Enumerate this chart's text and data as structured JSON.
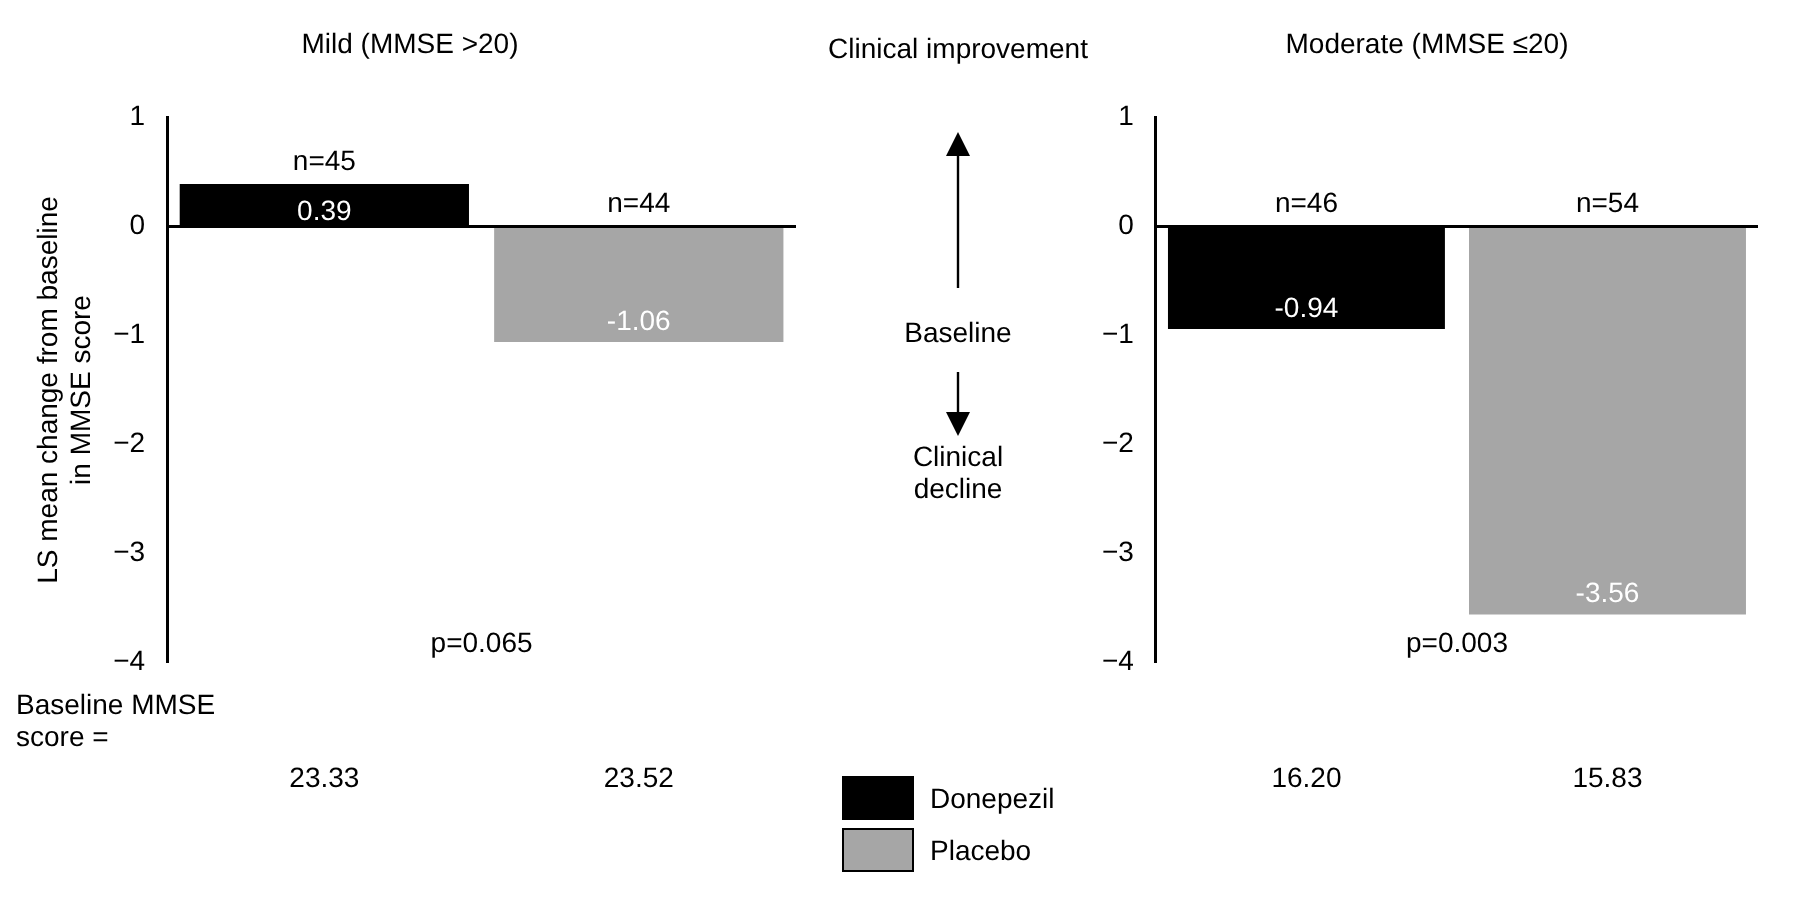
{
  "chart_data": [
    {
      "type": "bar",
      "title": "Mild (MMSE >20)",
      "ylabel": "LS mean change from baseline in MMSE score",
      "categories": [
        "23.33",
        "23.52"
      ],
      "series": [
        {
          "name": "Donepezil",
          "color": "#000000",
          "values": [
            0.39,
            null
          ]
        },
        {
          "name": "Placebo",
          "color": "#a6a6a6",
          "values": [
            null,
            -1.06
          ]
        }
      ],
      "ylim": [
        -4,
        1
      ],
      "yticks": [
        -4,
        -3,
        -2,
        -1,
        0,
        1
      ],
      "data_labels": true,
      "legend": "right",
      "grid": false,
      "ref_lines": [
        {
          "axis": "y",
          "value": 0,
          "color": "#000000"
        }
      ],
      "annotations": [
        {
          "text": "n=45",
          "x": "23.33",
          "y": 0.39
        },
        {
          "text": "n=44",
          "x": "23.52",
          "y": 0
        },
        "p=0.065",
        "Baseline MMSE score ="
      ]
    },
    {
      "type": "other",
      "annotations": [
        "Clinical improvement",
        "Baseline",
        "Clinical decline"
      ]
    },
    {
      "type": "bar",
      "title": "Moderate (MMSE ≤20)",
      "categories": [
        "16.20",
        "15.83"
      ],
      "series": [
        {
          "color": "#000000",
          "values": [
            -0.94,
            null
          ]
        },
        {
          "color": "#a6a6a6",
          "values": [
            null,
            -3.56
          ]
        }
      ],
      "ylim": [
        -4,
        1
      ],
      "yticks": [
        -4,
        -3,
        -2,
        -1,
        0,
        1
      ],
      "data_labels": true,
      "legend": false,
      "grid": false,
      "ref_lines": [
        {
          "axis": "y",
          "value": 0,
          "color": "#000000"
        }
      ],
      "annotations": [
        {
          "text": "n=46",
          "x": "16.20",
          "y": 0
        },
        {
          "text": "n=54",
          "x": "15.83",
          "y": 0
        },
        "p=0.003"
      ]
    }
  ]
}
